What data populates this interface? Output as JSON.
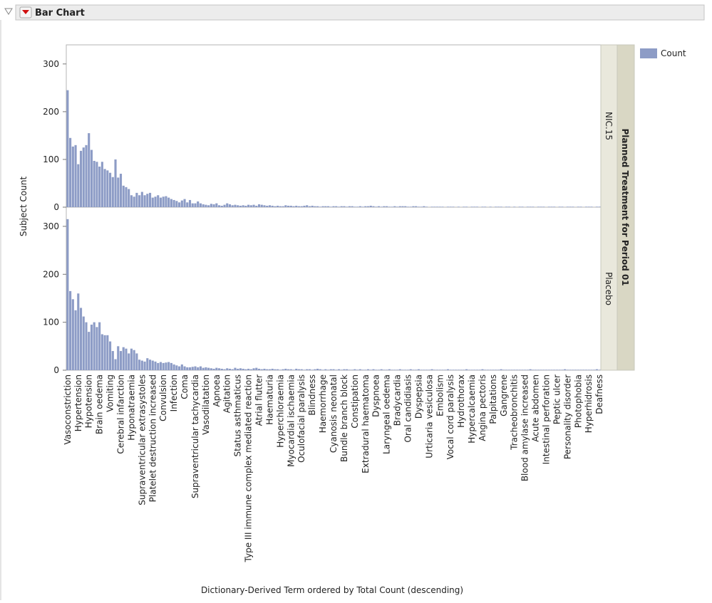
{
  "chart_data": {
    "type": "bar",
    "title": "Bar Chart",
    "x_label": "Dictionary-Derived Term ordered by Total Count (descending)",
    "y_label": "Subject Count",
    "legend_label": "Count",
    "color": "#8d9cc6",
    "ylim": [
      0,
      340
    ],
    "yticks": [
      0,
      100,
      200,
      300
    ],
    "facet_title": "Planned Treatment for Period 01",
    "categories": [
      "Vasoconstriction",
      null,
      null,
      null,
      "Hypertension",
      null,
      null,
      null,
      "Hypotension",
      null,
      null,
      null,
      "Brain oedema",
      null,
      null,
      null,
      "Vomiting",
      null,
      null,
      null,
      "Cerebral infarction",
      null,
      null,
      null,
      "Hyponatraemia",
      null,
      null,
      null,
      "Supraventricular extrasystoles",
      null,
      null,
      null,
      "Platelet destruction increased",
      null,
      null,
      null,
      "Convulsion",
      null,
      null,
      null,
      "Infection",
      null,
      null,
      null,
      "Coma",
      null,
      null,
      null,
      "Supraventricular tachycardia",
      null,
      null,
      null,
      "Vasodilatation",
      null,
      null,
      null,
      "Apnoea",
      null,
      null,
      null,
      "Agitation",
      null,
      null,
      null,
      "Status asthmaticus",
      null,
      null,
      null,
      "Type III immune complex mediated reaction",
      null,
      null,
      null,
      "Atrial flutter",
      null,
      null,
      null,
      "Haematuria",
      null,
      null,
      null,
      "Hyperchloraemia",
      null,
      null,
      null,
      "Myocardial ischaemia",
      null,
      null,
      null,
      "Oculofacial paralysis",
      null,
      null,
      null,
      "Blindness",
      null,
      null,
      null,
      "Haemorrhage",
      null,
      null,
      null,
      "Cyanosis neonatal",
      null,
      null,
      null,
      "Bundle branch block",
      null,
      null,
      null,
      "Constipation",
      null,
      null,
      null,
      "Extradural haematoma",
      null,
      null,
      null,
      "Dyspnoea",
      null,
      null,
      null,
      "Laryngeal oedema",
      null,
      null,
      null,
      "Bradycardia",
      null,
      null,
      null,
      "Oral candidiasis",
      null,
      null,
      null,
      "Dyspepsia",
      null,
      null,
      null,
      "Urticaria vesiculosa",
      null,
      null,
      null,
      "Embolism",
      null,
      null,
      null,
      "Vocal cord paralysis",
      null,
      null,
      null,
      "Hydrothorax",
      null,
      null,
      null,
      "Hypercalcaemia",
      null,
      null,
      null,
      "Angina pectoris",
      null,
      null,
      null,
      "Palpitations",
      null,
      null,
      null,
      "Gangrene",
      null,
      null,
      null,
      "Tracheobronchitis",
      null,
      null,
      null,
      "Blood amylase increased",
      null,
      null,
      null,
      "Acute abdomen",
      null,
      null,
      null,
      "Intestinal perforation",
      null,
      null,
      null,
      "Peptic ulcer",
      null,
      null,
      null,
      "Personality disorder",
      null,
      null,
      null,
      "Photophobia",
      null,
      null,
      null,
      "Hyperhidrosis",
      null,
      null,
      null,
      "Deafness"
    ],
    "panels": [
      {
        "name": "NIC.15",
        "values": [
          245,
          145,
          127,
          130,
          90,
          118,
          125,
          130,
          155,
          120,
          97,
          95,
          85,
          95,
          80,
          77,
          72,
          63,
          100,
          62,
          70,
          45,
          42,
          38,
          25,
          22,
          30,
          25,
          32,
          25,
          28,
          30,
          20,
          22,
          25,
          20,
          22,
          23,
          20,
          17,
          15,
          13,
          10,
          14,
          17,
          10,
          15,
          8,
          8,
          12,
          8,
          6,
          5,
          4,
          7,
          6,
          8,
          4,
          3,
          5,
          8,
          6,
          4,
          5,
          4,
          3,
          4,
          3,
          5,
          4,
          5,
          3,
          6,
          5,
          4,
          3,
          4,
          3,
          2,
          3,
          2,
          2,
          4,
          3,
          3,
          2,
          3,
          2,
          2,
          3,
          4,
          2,
          3,
          2,
          2,
          1,
          2,
          2,
          2,
          1,
          2,
          2,
          1,
          2,
          2,
          1,
          2,
          2,
          1,
          1,
          2,
          1,
          2,
          2,
          3,
          2,
          1,
          2,
          1,
          2,
          2,
          1,
          1,
          2,
          1,
          2,
          2,
          2,
          1,
          1,
          2,
          2,
          1,
          1,
          2,
          1,
          0,
          1,
          1,
          1,
          1,
          1,
          0,
          1,
          1,
          1,
          0,
          1,
          0,
          1,
          1,
          0,
          1,
          1,
          1,
          0,
          1,
          1,
          0,
          1,
          0,
          1,
          1,
          1,
          0,
          1,
          1,
          0,
          1,
          0,
          1,
          1,
          0,
          1,
          1,
          1,
          0,
          1,
          1,
          1,
          0,
          1,
          1,
          1,
          0,
          1,
          1,
          0,
          1,
          1,
          1,
          0,
          1,
          1,
          0,
          1,
          1,
          1,
          0,
          1,
          1
        ]
      },
      {
        "name": "Placebo",
        "values": [
          315,
          165,
          148,
          125,
          160,
          130,
          112,
          100,
          80,
          95,
          100,
          90,
          100,
          75,
          73,
          73,
          60,
          40,
          23,
          50,
          40,
          48,
          45,
          35,
          45,
          42,
          35,
          22,
          20,
          18,
          25,
          22,
          20,
          18,
          15,
          17,
          15,
          16,
          17,
          15,
          12,
          10,
          8,
          12,
          8,
          6,
          6,
          7,
          8,
          6,
          8,
          5,
          6,
          5,
          4,
          3,
          5,
          4,
          3,
          2,
          4,
          3,
          2,
          5,
          3,
          4,
          3,
          2,
          3,
          2,
          4,
          5,
          3,
          2,
          3,
          2,
          2,
          3,
          2,
          2,
          1,
          2,
          3,
          2,
          2,
          1,
          3,
          2,
          2,
          1,
          2,
          2,
          1,
          2,
          3,
          2,
          1,
          2,
          1,
          2,
          2,
          1,
          2,
          1,
          2,
          2,
          1,
          1,
          2,
          1,
          2,
          1,
          1,
          2,
          1,
          2,
          1,
          1,
          2,
          1,
          1,
          2,
          1,
          1,
          1,
          2,
          1,
          1,
          1,
          2,
          1,
          1,
          2,
          1,
          1,
          1,
          1,
          2,
          1,
          1,
          1,
          1,
          1,
          2,
          1,
          1,
          1,
          1,
          1,
          1,
          2,
          1,
          1,
          1,
          1,
          1,
          2,
          1,
          1,
          1,
          1,
          1,
          1,
          2,
          1,
          1,
          1,
          1,
          1,
          1,
          1,
          1,
          1,
          1,
          2,
          1,
          1,
          1,
          1,
          1,
          1,
          1,
          1,
          1,
          1,
          1,
          1,
          2,
          1,
          1,
          1,
          1,
          1,
          1,
          1,
          1,
          1,
          1,
          1,
          2,
          1
        ]
      }
    ]
  }
}
